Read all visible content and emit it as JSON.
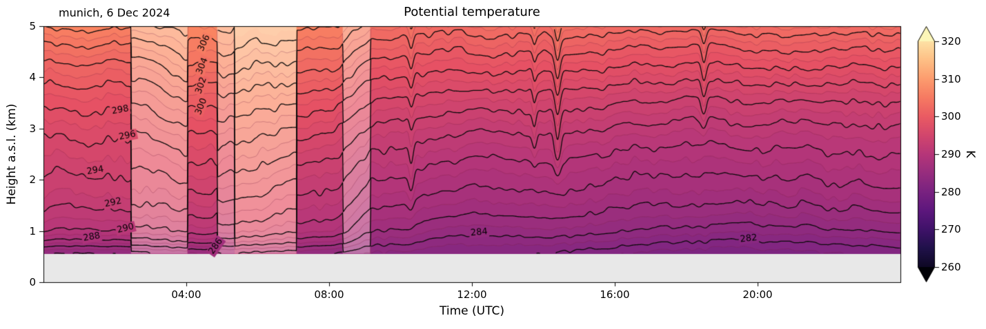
{
  "labels": {
    "title": "Potential temperature",
    "annotation": "munich, 6 Dec 2024",
    "xlabel": "Time (UTC)",
    "ylabel": "Height a.s.l. (km)",
    "colorbar_unit": "K"
  },
  "axis": {
    "x_range_hours": [
      0,
      24
    ],
    "y_range_km": [
      0,
      5
    ],
    "x_ticks": [
      {
        "t": 4,
        "label": "04:00"
      },
      {
        "t": 8,
        "label": "08:00"
      },
      {
        "t": 12,
        "label": "12:00"
      },
      {
        "t": 16,
        "label": "16:00"
      },
      {
        "t": 20,
        "label": "20:00"
      }
    ],
    "y_ticks": [
      0,
      1,
      2,
      3,
      4,
      5
    ]
  },
  "colorbar": {
    "ticks": [
      260,
      270,
      280,
      290,
      300,
      310,
      320
    ],
    "vmin_tick": 260,
    "vmax_tick": 320,
    "extend": "both",
    "colormap_name": "magma",
    "stops": [
      [
        0.0,
        "#000004"
      ],
      [
        0.125,
        "#1d1147"
      ],
      [
        0.25,
        "#51127c"
      ],
      [
        0.375,
        "#822681"
      ],
      [
        0.5,
        "#b63679"
      ],
      [
        0.625,
        "#e65164"
      ],
      [
        0.75,
        "#fb8761"
      ],
      [
        0.875,
        "#fec287"
      ],
      [
        1.0,
        "#fcfdbf"
      ]
    ]
  },
  "chart_data": {
    "type": "heatmap",
    "subtype": "filled-contour time-height section",
    "title": "Potential temperature",
    "annotation": "munich, 6 Dec 2024",
    "xlabel": "Time (UTC)",
    "ylabel": "Height a.s.l. (km)",
    "units": "K",
    "x_range_hours": [
      0,
      24
    ],
    "y_range_km": [
      0,
      5
    ],
    "ground_top_km": 0.56,
    "ground_color": "#e8e8e8",
    "color_norm": {
      "vmin": 256,
      "vmax": 324
    },
    "contour_interval_K": 2,
    "major_levels": [
      280,
      282,
      284,
      286,
      288,
      290,
      292,
      294,
      296,
      298,
      300,
      302,
      304,
      306,
      308,
      310,
      312
    ],
    "minor_levels": [
      281,
      283,
      285,
      287,
      289,
      291,
      293,
      295,
      297,
      299,
      301,
      303,
      305,
      307,
      309,
      311
    ],
    "profile_hours": [
      0,
      2.4,
      4.4,
      7.3,
      8.0,
      9.3,
      12,
      16,
      20,
      24
    ],
    "profile_heights_km": [
      0.58,
      0.8,
      1.0,
      1.3,
      1.7,
      2.2,
      2.9,
      3.6,
      4.2,
      4.7,
      5.0
    ],
    "theta_profiles_K": [
      [
        283.8,
        287.5,
        289.8,
        291.3,
        292.8,
        294.0,
        296.0,
        298.8,
        301.5,
        304.5,
        306.5
      ],
      [
        284.2,
        287.8,
        290.0,
        291.5,
        293.0,
        294.2,
        296.2,
        299.0,
        301.8,
        304.8,
        306.8
      ],
      [
        285.0,
        288.5,
        290.5,
        292.0,
        293.6,
        295.4,
        297.8,
        300.8,
        304.0,
        306.2,
        307.5
      ],
      [
        284.5,
        287.5,
        289.5,
        291.0,
        292.5,
        294.0,
        296.5,
        299.5,
        302.5,
        305.0,
        306.5
      ],
      [
        284.0,
        287.0,
        289.0,
        290.5,
        292.0,
        293.5,
        296.0,
        299.0,
        302.0,
        304.5,
        306.0
      ],
      [
        282.8,
        284.6,
        286.0,
        287.4,
        289.0,
        290.6,
        293.0,
        296.0,
        299.0,
        301.6,
        303.2
      ],
      [
        282.2,
        283.4,
        284.6,
        286.0,
        287.6,
        289.2,
        291.8,
        295.0,
        298.2,
        300.8,
        302.6
      ],
      [
        281.2,
        282.8,
        284.2,
        285.6,
        287.2,
        288.8,
        291.4,
        294.6,
        298.0,
        300.8,
        302.8
      ],
      [
        280.6,
        282.0,
        283.4,
        285.0,
        286.8,
        288.6,
        291.2,
        294.4,
        298.0,
        301.0,
        303.2
      ],
      [
        281.0,
        282.4,
        283.8,
        285.2,
        287.0,
        288.8,
        291.4,
        294.6,
        298.2,
        301.2,
        303.6
      ]
    ],
    "pale_stripes": [
      {
        "t0": 2.45,
        "t1": 4.03,
        "dtheta_K": 3.5,
        "wash_alpha": 0.33
      },
      {
        "t0": 4.86,
        "t1": 5.35,
        "dtheta_K": 3.0,
        "wash_alpha": 0.33
      },
      {
        "t0": 5.35,
        "t1": 7.08,
        "dtheta_K": 7.0,
        "wash_alpha": 0.35
      },
      {
        "t0": 8.38,
        "t1": 9.15,
        "dtheta_K": 2.0,
        "wash_alpha": 0.33
      }
    ],
    "contour_labels": [
      {
        "v": 282,
        "t": 19.75,
        "z": 0.85,
        "rot": -6
      },
      {
        "v": 284,
        "t": 12.2,
        "z": 0.97,
        "rot": -5
      },
      {
        "v": 286,
        "t": 4.83,
        "z": 0.7,
        "rot": -55
      },
      {
        "v": 288,
        "t": 1.35,
        "z": 0.88,
        "rot": -10
      },
      {
        "v": 290,
        "t": 2.3,
        "z": 1.05,
        "rot": -14
      },
      {
        "v": 292,
        "t": 1.95,
        "z": 1.55,
        "rot": -12
      },
      {
        "v": 294,
        "t": 1.45,
        "z": 2.18,
        "rot": -10
      },
      {
        "v": 296,
        "t": 2.35,
        "z": 2.86,
        "rot": -12
      },
      {
        "v": 298,
        "t": 2.15,
        "z": 3.36,
        "rot": -10
      },
      {
        "v": 300,
        "t": 4.42,
        "z": 3.43,
        "rot": -68
      },
      {
        "v": 302,
        "t": 4.42,
        "z": 3.84,
        "rot": -70
      },
      {
        "v": 304,
        "t": 4.45,
        "z": 4.22,
        "rot": -68
      },
      {
        "v": 306,
        "t": 4.5,
        "z": 4.67,
        "rot": -66
      }
    ],
    "texture": {
      "wiggle_amp_K": 1.0,
      "warm_dips": [
        {
          "t": 14.4,
          "amp": 2.5,
          "sigma": 0.1,
          "zmin": 1.8
        },
        {
          "t": 18.5,
          "amp": 2.0,
          "sigma": 0.09,
          "zmin": 2.6
        },
        {
          "t": 10.3,
          "amp": 1.2,
          "sigma": 0.08,
          "zmin": 1.2
        },
        {
          "t": 13.75,
          "amp": 1.2,
          "sigma": 0.07,
          "zmin": 2.0
        }
      ]
    },
    "legend_position": "right-colorbar",
    "grid": false
  }
}
